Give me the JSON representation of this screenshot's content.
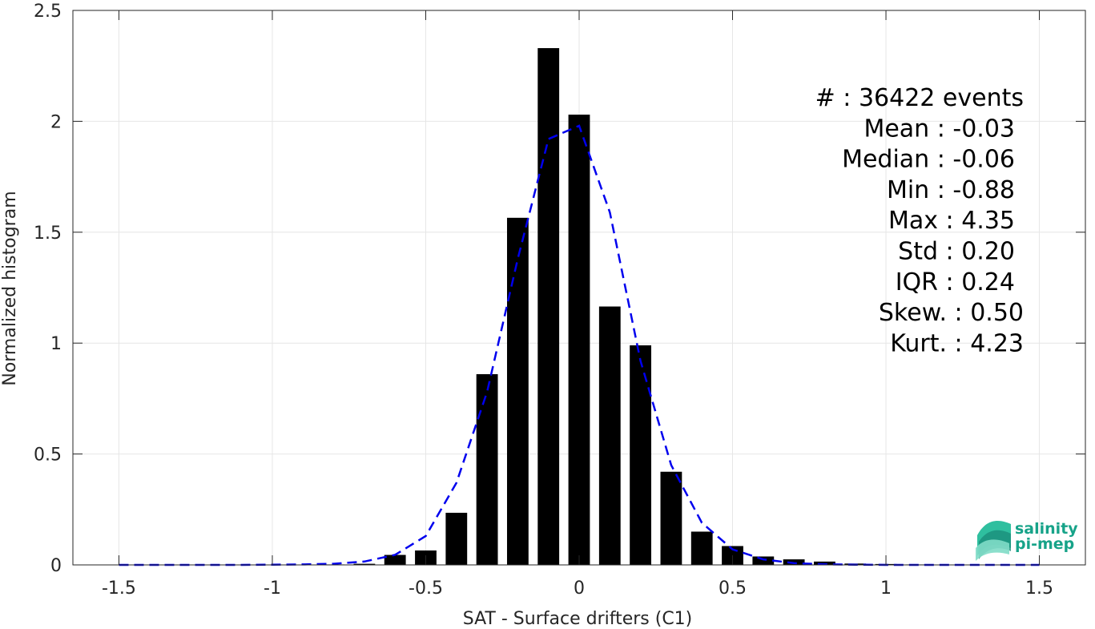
{
  "chart_data": {
    "type": "bar",
    "xlabel": "SAT - Surface drifters (C1)",
    "ylabel": "Normalized histogram",
    "xlim": [
      -1.65,
      1.65
    ],
    "ylim": [
      0,
      2.5
    ],
    "grid": true,
    "xticks": [
      -1.5,
      -1,
      -0.5,
      0,
      0.5,
      1,
      1.5
    ],
    "xtick_labels": [
      "-1.5",
      "-1",
      "-0.5",
      "0",
      "0.5",
      "1",
      "1.5"
    ],
    "yticks": [
      0,
      0.5,
      1,
      1.5,
      2,
      2.5
    ],
    "ytick_labels": [
      "0",
      "0.5",
      "1",
      "1.5",
      "2",
      "2.5"
    ],
    "bar_width": 0.07,
    "bars": {
      "x": [
        -1.5,
        -1.4,
        -1.3,
        -1.2,
        -1.1,
        -1.0,
        -0.9,
        -0.8,
        -0.7,
        -0.6,
        -0.5,
        -0.4,
        -0.3,
        -0.2,
        -0.1,
        0.0,
        0.1,
        0.2,
        0.3,
        0.4,
        0.5,
        0.6,
        0.7,
        0.8,
        0.9,
        1.0,
        1.1,
        1.2,
        1.3,
        1.4,
        1.5
      ],
      "values": [
        0,
        0,
        0,
        0,
        0,
        0,
        0,
        0.002,
        0.005,
        0.045,
        0.065,
        0.235,
        0.86,
        1.565,
        2.33,
        2.03,
        1.165,
        0.99,
        0.42,
        0.15,
        0.085,
        0.038,
        0.025,
        0.015,
        0.006,
        0.004,
        0.002,
        0.001,
        0,
        0,
        0
      ],
      "color": "#000000"
    },
    "fit_curve": {
      "style": "dashed",
      "color": "#0000ee",
      "x": [
        -1.5,
        -1.4,
        -1.3,
        -1.2,
        -1.1,
        -1.0,
        -0.9,
        -0.8,
        -0.7,
        -0.6,
        -0.5,
        -0.4,
        -0.3,
        -0.2,
        -0.1,
        0.0,
        0.1,
        0.2,
        0.3,
        0.4,
        0.5,
        0.6,
        0.7,
        0.8,
        0.9,
        1.0,
        1.1,
        1.2,
        1.3,
        1.4,
        1.5
      ],
      "y": [
        0,
        0,
        0,
        0,
        0,
        0.001,
        0.002,
        0.005,
        0.015,
        0.045,
        0.13,
        0.37,
        0.78,
        1.38,
        1.92,
        1.98,
        1.59,
        0.92,
        0.45,
        0.19,
        0.07,
        0.025,
        0.008,
        0.003,
        0.001,
        0,
        0,
        0,
        0,
        0,
        0
      ]
    },
    "annotations": [
      "#  : 36422 events",
      "Mean : -0.03",
      "Median : -0.06",
      "Min : -0.88",
      "Max : 4.35",
      "Std : 0.20",
      "IQR : 0.24",
      "Skew. : 0.50",
      "Kurt. : 4.23"
    ]
  },
  "logo": {
    "line1": "salinity",
    "line2": "pi-mep",
    "colors": [
      "#2fbf9f",
      "#1a8f7a",
      "#7fdcc6"
    ]
  }
}
